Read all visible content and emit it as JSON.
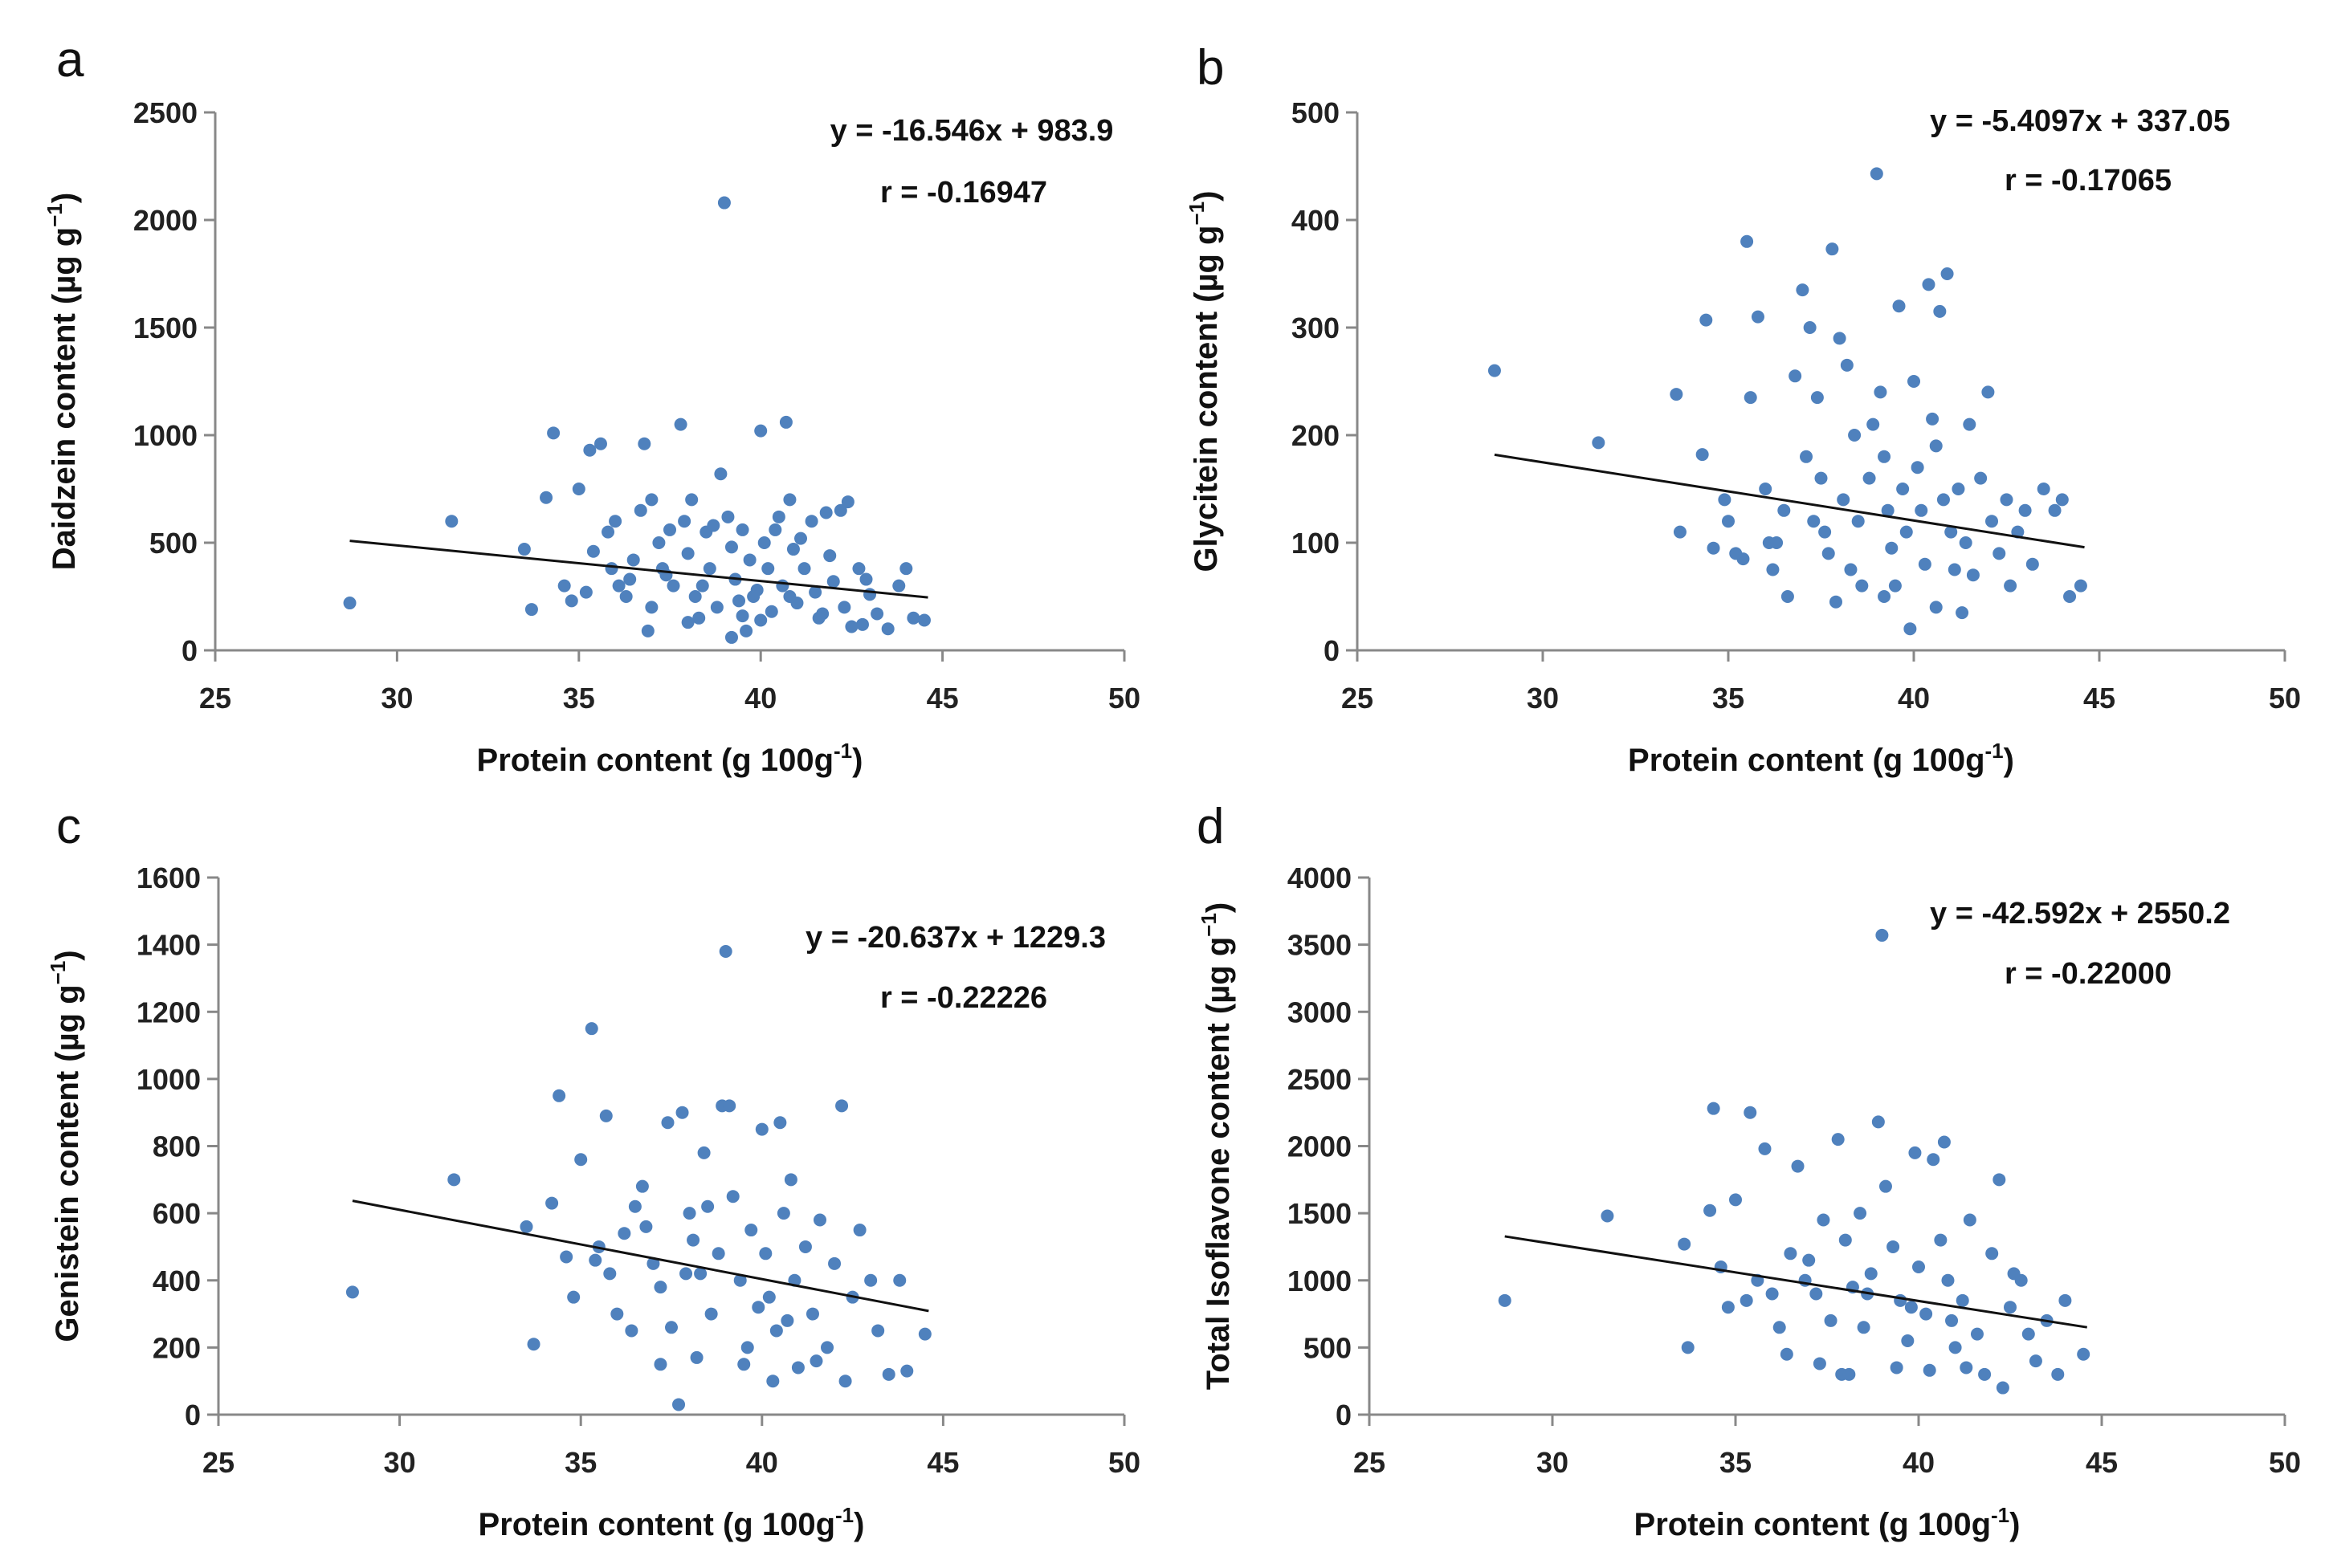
{
  "figure": {
    "accent_color": "#4F81BD",
    "line_color": "#111111"
  },
  "chart_data": [
    {
      "type": "scatter",
      "panel": "a",
      "xlabel": "Protein content (g 100g",
      "xlabel_sup": "-1",
      "xlabel_tail": ")",
      "ylabel": "Daidzein content (µg g",
      "ylabel_sup": "−1",
      "ylabel_tail": ")",
      "xlim": [
        25,
        50
      ],
      "ylim": [
        0,
        2500
      ],
      "xticks": [
        25,
        30,
        35,
        40,
        45,
        50
      ],
      "yticks": [
        0,
        500,
        1000,
        1500,
        2000,
        2500
      ],
      "equation": "y = -16.546x + 983.9",
      "r_text": "r = -0.16947",
      "trendline": {
        "slope": -16.546,
        "intercept": 983.9,
        "x_range": [
          28.7,
          44.6
        ]
      },
      "points": [
        [
          28.7,
          220
        ],
        [
          31.5,
          600
        ],
        [
          33.5,
          470
        ],
        [
          33.7,
          190
        ],
        [
          34.3,
          1010
        ],
        [
          34.1,
          710
        ],
        [
          34.6,
          300
        ],
        [
          34.8,
          230
        ],
        [
          35.0,
          750
        ],
        [
          35.3,
          930
        ],
        [
          35.6,
          960
        ],
        [
          35.4,
          460
        ],
        [
          35.8,
          550
        ],
        [
          35.9,
          380
        ],
        [
          36.1,
          300
        ],
        [
          36.3,
          250
        ],
        [
          36.5,
          420
        ],
        [
          36.8,
          960
        ],
        [
          37.0,
          700
        ],
        [
          37.2,
          500
        ],
        [
          37.4,
          350
        ],
        [
          37.6,
          300
        ],
        [
          37.8,
          1050
        ],
        [
          37.9,
          600
        ],
        [
          38.0,
          450
        ],
        [
          38.2,
          250
        ],
        [
          38.3,
          150
        ],
        [
          38.5,
          550
        ],
        [
          38.6,
          380
        ],
        [
          38.8,
          200
        ],
        [
          38.9,
          820
        ],
        [
          39.0,
          2080
        ],
        [
          39.1,
          620
        ],
        [
          39.2,
          480
        ],
        [
          39.3,
          330
        ],
        [
          39.4,
          230
        ],
        [
          39.5,
          160
        ],
        [
          39.6,
          90
        ],
        [
          39.7,
          420
        ],
        [
          39.9,
          280
        ],
        [
          40.0,
          1020
        ],
        [
          40.1,
          500
        ],
        [
          40.2,
          380
        ],
        [
          40.3,
          180
        ],
        [
          40.5,
          620
        ],
        [
          40.6,
          300
        ],
        [
          40.7,
          1060
        ],
        [
          40.8,
          700
        ],
        [
          40.9,
          470
        ],
        [
          41.0,
          220
        ],
        [
          41.2,
          380
        ],
        [
          41.4,
          600
        ],
        [
          41.5,
          270
        ],
        [
          41.7,
          170
        ],
        [
          41.9,
          440
        ],
        [
          42.0,
          320
        ],
        [
          42.2,
          650
        ],
        [
          42.3,
          200
        ],
        [
          42.5,
          110
        ],
        [
          42.7,
          380
        ],
        [
          43.0,
          260
        ],
        [
          43.2,
          170
        ],
        [
          43.5,
          100
        ],
        [
          43.8,
          300
        ],
        [
          44.0,
          380
        ],
        [
          44.2,
          150
        ],
        [
          44.5,
          140
        ],
        [
          36.0,
          600
        ],
        [
          36.7,
          650
        ],
        [
          37.5,
          560
        ],
        [
          38.1,
          700
        ],
        [
          38.7,
          580
        ],
        [
          39.5,
          560
        ],
        [
          40.4,
          560
        ],
        [
          41.1,
          520
        ],
        [
          41.8,
          640
        ],
        [
          42.4,
          690
        ],
        [
          42.9,
          330
        ],
        [
          38.4,
          300
        ],
        [
          39.8,
          250
        ],
        [
          40.8,
          250
        ],
        [
          37.3,
          380
        ],
        [
          36.4,
          330
        ],
        [
          35.2,
          270
        ],
        [
          41.6,
          150
        ],
        [
          42.8,
          120
        ],
        [
          39.2,
          60
        ],
        [
          40.0,
          140
        ],
        [
          38.0,
          130
        ],
        [
          37.0,
          200
        ],
        [
          36.9,
          90
        ]
      ]
    },
    {
      "type": "scatter",
      "panel": "b",
      "xlabel": "Protein content (g 100g",
      "xlabel_sup": "-1",
      "xlabel_tail": ")",
      "ylabel": "Glycitein content (µg g",
      "ylabel_sup": "−1",
      "ylabel_tail": ")",
      "xlim": [
        25,
        50
      ],
      "ylim": [
        0,
        500
      ],
      "xticks": [
        25,
        30,
        35,
        40,
        45,
        50
      ],
      "yticks": [
        0,
        100,
        200,
        300,
        400,
        500
      ],
      "equation": "y = -5.4097x + 337.05",
      "r_text": "r = -0.17065",
      "trendline": {
        "slope": -5.4097,
        "intercept": 337.05,
        "x_range": [
          28.7,
          44.6
        ]
      },
      "points": [
        [
          28.7,
          260
        ],
        [
          31.5,
          193
        ],
        [
          33.6,
          238
        ],
        [
          33.7,
          110
        ],
        [
          34.3,
          182
        ],
        [
          34.4,
          307
        ],
        [
          34.6,
          95
        ],
        [
          34.9,
          140
        ],
        [
          35.0,
          120
        ],
        [
          35.4,
          85
        ],
        [
          35.5,
          380
        ],
        [
          35.6,
          235
        ],
        [
          35.8,
          310
        ],
        [
          36.0,
          150
        ],
        [
          36.1,
          100
        ],
        [
          36.2,
          75
        ],
        [
          36.5,
          130
        ],
        [
          36.6,
          50
        ],
        [
          36.8,
          255
        ],
        [
          37.0,
          335
        ],
        [
          37.1,
          180
        ],
        [
          37.2,
          300
        ],
        [
          37.4,
          235
        ],
        [
          37.5,
          160
        ],
        [
          37.6,
          110
        ],
        [
          37.7,
          90
        ],
        [
          37.8,
          373
        ],
        [
          37.9,
          45
        ],
        [
          38.0,
          290
        ],
        [
          38.1,
          140
        ],
        [
          38.2,
          265
        ],
        [
          38.4,
          200
        ],
        [
          38.5,
          120
        ],
        [
          38.6,
          60
        ],
        [
          38.8,
          160
        ],
        [
          39.0,
          443
        ],
        [
          39.1,
          240
        ],
        [
          39.2,
          180
        ],
        [
          39.3,
          130
        ],
        [
          39.4,
          95
        ],
        [
          39.5,
          60
        ],
        [
          39.6,
          320
        ],
        [
          39.7,
          150
        ],
        [
          39.8,
          110
        ],
        [
          40.0,
          250
        ],
        [
          40.1,
          170
        ],
        [
          40.2,
          130
        ],
        [
          40.3,
          80
        ],
        [
          40.4,
          340
        ],
        [
          40.5,
          215
        ],
        [
          40.6,
          190
        ],
        [
          40.7,
          315
        ],
        [
          40.8,
          140
        ],
        [
          40.9,
          350
        ],
        [
          41.0,
          110
        ],
        [
          41.1,
          75
        ],
        [
          41.2,
          150
        ],
        [
          41.4,
          100
        ],
        [
          41.5,
          210
        ],
        [
          41.6,
          70
        ],
        [
          41.8,
          160
        ],
        [
          42.0,
          240
        ],
        [
          42.1,
          120
        ],
        [
          42.3,
          90
        ],
        [
          42.5,
          140
        ],
        [
          42.6,
          60
        ],
        [
          42.8,
          110
        ],
        [
          43.0,
          130
        ],
        [
          43.2,
          80
        ],
        [
          43.5,
          150
        ],
        [
          43.8,
          130
        ],
        [
          44.0,
          140
        ],
        [
          44.2,
          50
        ],
        [
          44.5,
          60
        ],
        [
          39.9,
          20
        ],
        [
          38.9,
          210
        ],
        [
          37.3,
          120
        ],
        [
          36.3,
          100
        ],
        [
          35.2,
          90
        ],
        [
          41.3,
          35
        ],
        [
          40.6,
          40
        ],
        [
          39.2,
          50
        ],
        [
          38.3,
          75
        ]
      ]
    },
    {
      "type": "scatter",
      "panel": "c",
      "xlabel": "Protein content (g 100g",
      "xlabel_sup": "-1",
      "xlabel_tail": ")",
      "ylabel": "Genistein content (µg g",
      "ylabel_sup": "−1",
      "ylabel_tail": ")",
      "xlim": [
        25,
        50
      ],
      "ylim": [
        0,
        1600
      ],
      "xticks": [
        25,
        30,
        35,
        40,
        45,
        50
      ],
      "yticks": [
        0,
        200,
        400,
        600,
        800,
        1000,
        1200,
        1400,
        1600
      ],
      "equation": "y = -20.637x + 1229.3",
      "r_text": "r = -0.22226",
      "trendline": {
        "slope": -20.637,
        "intercept": 1229.3,
        "x_range": [
          28.7,
          44.6
        ]
      },
      "points": [
        [
          28.7,
          365
        ],
        [
          31.5,
          700
        ],
        [
          33.5,
          560
        ],
        [
          33.7,
          210
        ],
        [
          34.2,
          630
        ],
        [
          34.4,
          950
        ],
        [
          34.6,
          470
        ],
        [
          34.8,
          350
        ],
        [
          35.0,
          760
        ],
        [
          35.3,
          1150
        ],
        [
          35.5,
          500
        ],
        [
          35.7,
          890
        ],
        [
          35.8,
          420
        ],
        [
          36.0,
          300
        ],
        [
          36.2,
          540
        ],
        [
          36.5,
          620
        ],
        [
          36.7,
          680
        ],
        [
          37.0,
          450
        ],
        [
          37.2,
          380
        ],
        [
          37.4,
          870
        ],
        [
          37.5,
          260
        ],
        [
          37.7,
          30
        ],
        [
          37.8,
          900
        ],
        [
          38.0,
          600
        ],
        [
          38.1,
          520
        ],
        [
          38.3,
          420
        ],
        [
          38.4,
          780
        ],
        [
          38.6,
          300
        ],
        [
          38.8,
          480
        ],
        [
          38.9,
          920
        ],
        [
          39.0,
          1380
        ],
        [
          39.1,
          920
        ],
        [
          39.2,
          650
        ],
        [
          39.4,
          400
        ],
        [
          39.6,
          200
        ],
        [
          39.7,
          550
        ],
        [
          40.0,
          850
        ],
        [
          40.1,
          480
        ],
        [
          40.2,
          350
        ],
        [
          40.4,
          250
        ],
        [
          40.5,
          870
        ],
        [
          40.6,
          600
        ],
        [
          40.8,
          700
        ],
        [
          40.9,
          400
        ],
        [
          41.0,
          140
        ],
        [
          41.2,
          500
        ],
        [
          41.4,
          300
        ],
        [
          41.6,
          580
        ],
        [
          41.8,
          200
        ],
        [
          42.0,
          450
        ],
        [
          42.2,
          920
        ],
        [
          42.3,
          100
        ],
        [
          42.5,
          350
        ],
        [
          42.7,
          550
        ],
        [
          43.0,
          400
        ],
        [
          43.2,
          250
        ],
        [
          43.5,
          120
        ],
        [
          43.8,
          400
        ],
        [
          44.0,
          130
        ],
        [
          44.5,
          240
        ],
        [
          36.4,
          250
        ],
        [
          37.2,
          150
        ],
        [
          38.2,
          170
        ],
        [
          39.5,
          150
        ],
        [
          40.3,
          100
        ],
        [
          41.5,
          160
        ],
        [
          38.5,
          620
        ],
        [
          37.9,
          420
        ],
        [
          36.8,
          560
        ],
        [
          35.4,
          460
        ],
        [
          39.9,
          320
        ],
        [
          40.7,
          280
        ]
      ]
    },
    {
      "type": "scatter",
      "panel": "d",
      "xlabel": "Protein content (g 100g",
      "xlabel_sup": "-1",
      "xlabel_tail": ")",
      "ylabel": "Total Isoflavone content (µg g",
      "ylabel_sup": "−1",
      "ylabel_tail": ")",
      "xlim": [
        25,
        50
      ],
      "ylim": [
        0,
        4000
      ],
      "xticks": [
        25,
        30,
        35,
        40,
        45,
        50
      ],
      "yticks": [
        0,
        500,
        1000,
        1500,
        2000,
        2500,
        3000,
        3500,
        4000
      ],
      "equation": "y = -42.592x + 2550.2",
      "r_text": "r = -0.22000",
      "trendline": {
        "slope": -42.592,
        "intercept": 2550.2,
        "x_range": [
          28.7,
          44.6
        ]
      },
      "points": [
        [
          28.7,
          850
        ],
        [
          31.5,
          1480
        ],
        [
          33.6,
          1270
        ],
        [
          33.7,
          500
        ],
        [
          34.3,
          1520
        ],
        [
          34.4,
          2280
        ],
        [
          34.6,
          1100
        ],
        [
          34.8,
          800
        ],
        [
          35.0,
          1600
        ],
        [
          35.4,
          2250
        ],
        [
          35.6,
          1000
        ],
        [
          35.8,
          1980
        ],
        [
          36.0,
          900
        ],
        [
          36.2,
          650
        ],
        [
          36.5,
          1200
        ],
        [
          36.7,
          1850
        ],
        [
          37.0,
          1150
        ],
        [
          37.2,
          900
        ],
        [
          37.4,
          1450
        ],
        [
          37.6,
          700
        ],
        [
          37.8,
          2050
        ],
        [
          37.9,
          300
        ],
        [
          38.0,
          1300
        ],
        [
          38.2,
          950
        ],
        [
          38.4,
          1500
        ],
        [
          38.5,
          650
        ],
        [
          38.7,
          1050
        ],
        [
          38.9,
          2180
        ],
        [
          39.0,
          3570
        ],
        [
          39.1,
          1700
        ],
        [
          39.3,
          1250
        ],
        [
          39.5,
          850
        ],
        [
          39.7,
          550
        ],
        [
          39.9,
          1950
        ],
        [
          40.0,
          1100
        ],
        [
          40.2,
          750
        ],
        [
          40.4,
          1900
        ],
        [
          40.6,
          1300
        ],
        [
          40.7,
          2030
        ],
        [
          40.8,
          1000
        ],
        [
          41.0,
          500
        ],
        [
          41.2,
          850
        ],
        [
          41.4,
          1450
        ],
        [
          41.6,
          600
        ],
        [
          41.8,
          300
        ],
        [
          42.0,
          1200
        ],
        [
          42.2,
          1750
        ],
        [
          42.3,
          200
        ],
        [
          42.5,
          800
        ],
        [
          42.8,
          1000
        ],
        [
          43.0,
          600
        ],
        [
          43.2,
          400
        ],
        [
          43.5,
          700
        ],
        [
          43.8,
          300
        ],
        [
          44.0,
          850
        ],
        [
          44.5,
          450
        ],
        [
          36.4,
          450
        ],
        [
          37.3,
          380
        ],
        [
          38.1,
          300
        ],
        [
          39.4,
          350
        ],
        [
          40.3,
          330
        ],
        [
          41.3,
          350
        ],
        [
          35.3,
          850
        ],
        [
          36.9,
          1000
        ],
        [
          38.6,
          900
        ],
        [
          39.8,
          800
        ],
        [
          40.9,
          700
        ],
        [
          42.6,
          1050
        ]
      ]
    }
  ]
}
